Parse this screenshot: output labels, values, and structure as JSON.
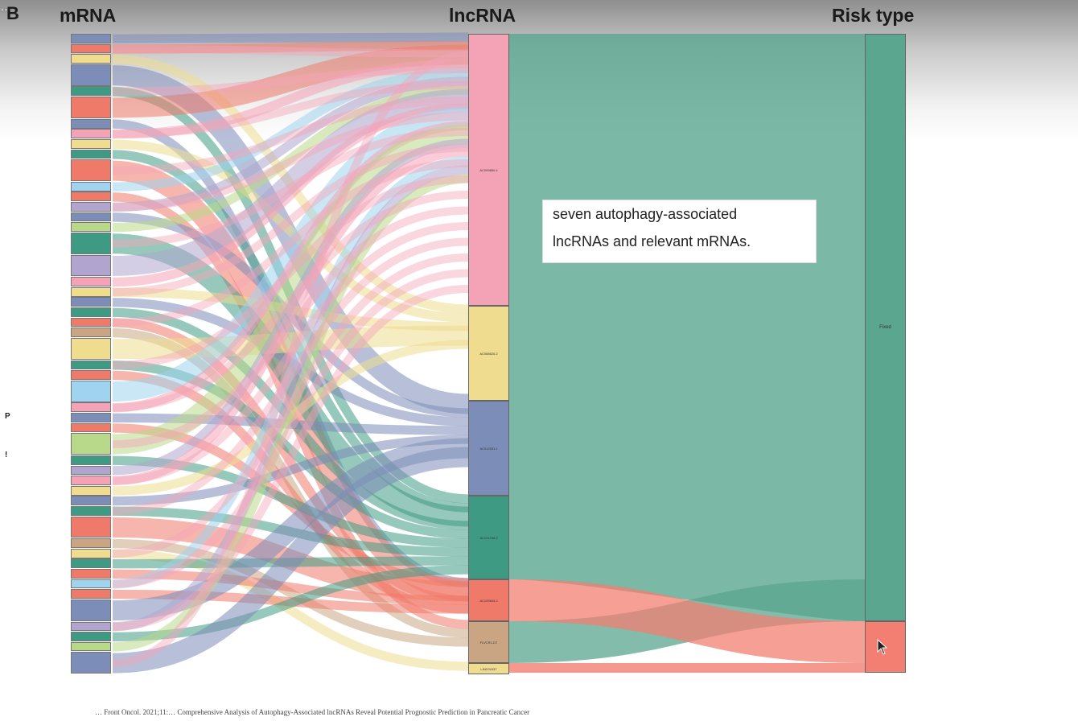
{
  "panel_label": "B",
  "columns": {
    "mrna": "mRNA",
    "lncrna": "lncRNA",
    "risk": "Risk type"
  },
  "top_overlay_text": "…",
  "note": {
    "line1": "seven autophagy-associated",
    "line2": "lncRNAs and relevant mRNAs."
  },
  "side_marks": [
    "P",
    "!"
  ],
  "caption": "…  Front Oncol. 2021;11:…  Comprehensive Analysis of Autophagy-Associated lncRNAs Reveal Potential Prognostic Prediction in Pancreatic Cancer",
  "colors": {
    "pink": "#f4a3b7",
    "yellow": "#efdc8e",
    "blue": "#7c8db8",
    "green": "#3f9a84",
    "red": "#f07a6a",
    "tan": "#c9a583",
    "sky": "#9fd3ef",
    "lime": "#b9d98a",
    "lavender": "#b1a5cf",
    "risk_green": "#5aa68e",
    "risk_red": "#f27f72"
  },
  "lncrna_nodes": [
    {
      "color": "pink",
      "label": "AC099850.4"
    },
    {
      "color": "yellow",
      "label": "AC068620.2"
    },
    {
      "color": "blue",
      "label": "AC012531.1"
    },
    {
      "color": "green",
      "label": "AC124798.2"
    },
    {
      "color": "red",
      "label": "AC125603.2"
    },
    {
      "color": "tan",
      "label": "FLVCR1-DT"
    },
    {
      "color": "yellow",
      "label": "LINC01537"
    }
  ],
  "risk_nodes": [
    {
      "color": "risk_green",
      "label": "Fixed"
    },
    {
      "color": "risk_red",
      "label": ""
    }
  ],
  "mrna_nodes": [
    {
      "color": "blue"
    },
    {
      "color": "red"
    },
    {
      "color": "yellow"
    },
    {
      "color": "blue"
    },
    {
      "color": "green"
    },
    {
      "color": "red"
    },
    {
      "color": "blue"
    },
    {
      "color": "pink"
    },
    {
      "color": "yellow"
    },
    {
      "color": "green"
    },
    {
      "color": "red"
    },
    {
      "color": "sky"
    },
    {
      "color": "red"
    },
    {
      "color": "lavender"
    },
    {
      "color": "blue"
    },
    {
      "color": "lime"
    },
    {
      "color": "green"
    },
    {
      "color": "lavender"
    },
    {
      "color": "pink"
    },
    {
      "color": "yellow"
    },
    {
      "color": "blue"
    },
    {
      "color": "green"
    },
    {
      "color": "red"
    },
    {
      "color": "tan"
    },
    {
      "color": "yellow"
    },
    {
      "color": "green"
    },
    {
      "color": "red"
    },
    {
      "color": "sky"
    },
    {
      "color": "pink"
    },
    {
      "color": "blue"
    },
    {
      "color": "red"
    },
    {
      "color": "lime"
    },
    {
      "color": "green"
    },
    {
      "color": "lavender"
    },
    {
      "color": "pink"
    },
    {
      "color": "yellow"
    },
    {
      "color": "blue"
    },
    {
      "color": "green"
    },
    {
      "color": "red"
    },
    {
      "color": "tan"
    },
    {
      "color": "yellow"
    },
    {
      "color": "green"
    },
    {
      "color": "red"
    },
    {
      "color": "sky"
    },
    {
      "color": "red"
    },
    {
      "color": "blue"
    },
    {
      "color": "lavender"
    },
    {
      "color": "green"
    },
    {
      "color": "lime"
    },
    {
      "color": "blue"
    }
  ]
}
